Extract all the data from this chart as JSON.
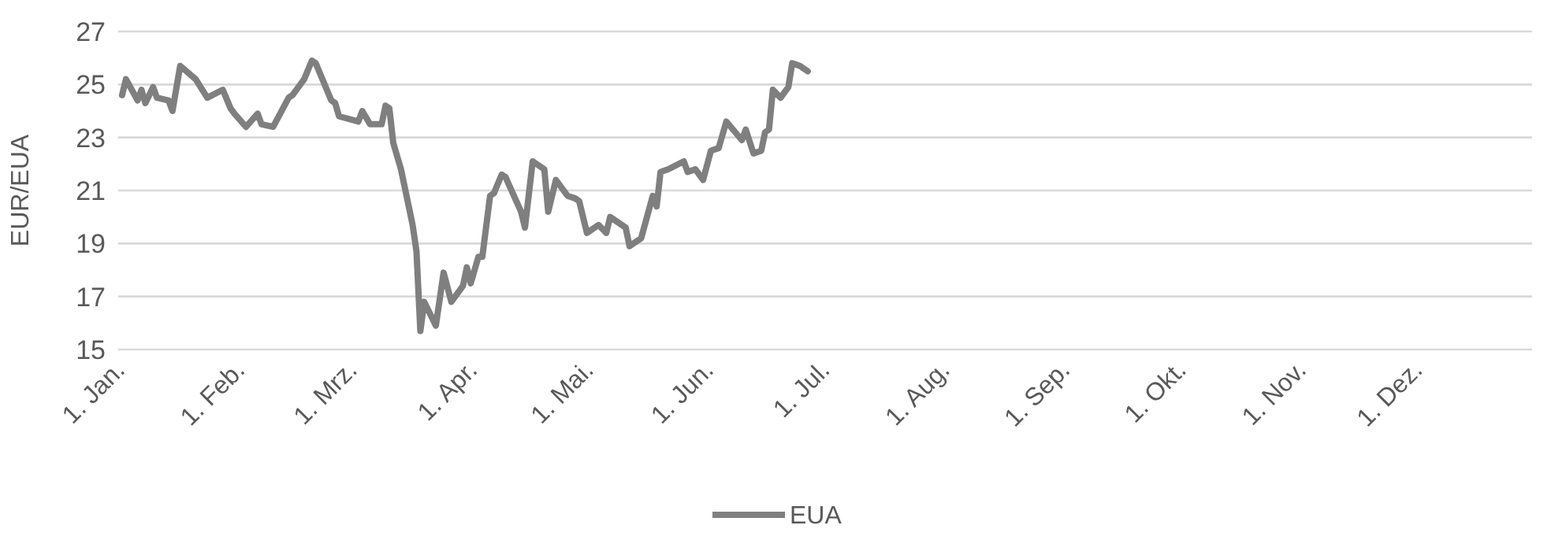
{
  "chart_data": {
    "type": "line",
    "ylabel": "EUR/EUA",
    "x": [
      "--01-02",
      "--01-03",
      "--01-06",
      "--01-07",
      "--01-08",
      "--01-10",
      "--01-11",
      "--01-14",
      "--01-15",
      "--01-17",
      "--01-21",
      "--01-24",
      "--01-28",
      "--01-30",
      "--01-31",
      "--02-03",
      "--02-06",
      "--02-07",
      "--02-10",
      "--02-14",
      "--02-15",
      "--02-18",
      "--02-20",
      "--02-21",
      "--02-25",
      "--02-26",
      "--02-27",
      "--03-03",
      "--03-04",
      "--03-06",
      "--03-09",
      "--03-10",
      "--03-11",
      "--03-12",
      "--03-14",
      "--03-17",
      "--03-18",
      "--03-19",
      "--03-20",
      "--03-23",
      "--03-25",
      "--03-27",
      "--03-30",
      "--03-31",
      "--04-01",
      "--04-03",
      "--04-04",
      "--04-06",
      "--04-07",
      "--04-09",
      "--04-10",
      "--04-14",
      "--04-15",
      "--04-17",
      "--04-20",
      "--04-21",
      "--04-23",
      "--04-26",
      "--04-28",
      "--04-29",
      "--05-01",
      "--05-04",
      "--05-06",
      "--05-07",
      "--05-11",
      "--05-12",
      "--05-15",
      "--05-18",
      "--05-19",
      "--05-20",
      "--05-22",
      "--05-26",
      "--05-27",
      "--05-29",
      "--05-31",
      "--06-02",
      "--06-04",
      "--06-06",
      "--06-10",
      "--06-11",
      "--06-13",
      "--06-15",
      "--06-16",
      "--06-17",
      "--06-18",
      "--06-20",
      "--06-22",
      "--06-23",
      "--06-25",
      "--06-27"
    ],
    "series": [
      {
        "name": "EUA",
        "color": "#7f7f7f",
        "values": [
          24.6,
          25.2,
          24.4,
          24.8,
          24.3,
          24.9,
          24.5,
          24.4,
          24.0,
          25.7,
          25.2,
          24.5,
          24.8,
          24.1,
          23.9,
          23.4,
          23.9,
          23.5,
          23.4,
          24.5,
          24.6,
          25.2,
          25.9,
          25.8,
          24.4,
          24.3,
          23.8,
          23.6,
          24.0,
          23.5,
          23.5,
          24.2,
          24.1,
          22.8,
          21.8,
          19.7,
          18.7,
          15.7,
          16.8,
          15.9,
          17.9,
          16.8,
          17.4,
          18.1,
          17.5,
          18.5,
          18.5,
          20.8,
          20.9,
          21.6,
          21.5,
          20.2,
          19.6,
          22.1,
          21.8,
          20.2,
          21.4,
          20.8,
          20.7,
          20.6,
          19.4,
          19.7,
          19.4,
          20.0,
          19.6,
          18.9,
          19.2,
          20.8,
          20.4,
          21.7,
          21.8,
          22.1,
          21.7,
          21.8,
          21.4,
          22.5,
          22.6,
          23.6,
          22.9,
          23.3,
          22.4,
          22.5,
          23.2,
          23.3,
          24.8,
          24.5,
          24.9,
          25.8,
          25.7,
          25.5
        ]
      }
    ],
    "xlim": [
      "--01-01",
      "--12-31"
    ],
    "xticks": [
      {
        "value": "--01-01",
        "label": "1. Jan."
      },
      {
        "value": "--02-01",
        "label": "1. Feb."
      },
      {
        "value": "--03-01",
        "label": "1. Mrz."
      },
      {
        "value": "--04-01",
        "label": "1. Apr."
      },
      {
        "value": "--05-01",
        "label": "1. Mai."
      },
      {
        "value": "--06-01",
        "label": "1. Jun."
      },
      {
        "value": "--07-01",
        "label": "1. Jul."
      },
      {
        "value": "--08-01",
        "label": "1. Aug."
      },
      {
        "value": "--09-01",
        "label": "1. Sep."
      },
      {
        "value": "--10-01",
        "label": "1. Okt."
      },
      {
        "value": "--11-01",
        "label": "1. Nov."
      },
      {
        "value": "--12-01",
        "label": "1. Dez."
      }
    ],
    "ylim": [
      15,
      27
    ],
    "yticks": [
      15,
      17,
      19,
      21,
      23,
      25,
      27
    ],
    "grid": "y",
    "legend": "bottom",
    "line_style": "solid",
    "marker": "none"
  }
}
